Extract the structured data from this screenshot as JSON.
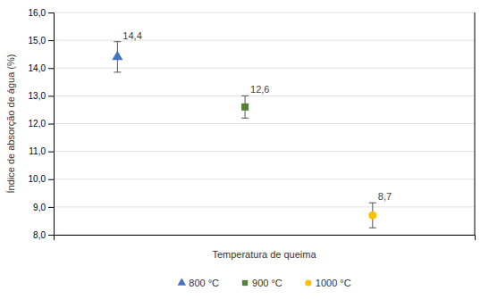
{
  "chart_data": {
    "type": "scatter",
    "xlabel": "Temperatura de queima",
    "ylabel": "Índice de absorção de água (%)",
    "xlim": [
      0.5,
      3.8
    ],
    "xticks": [],
    "ylim": [
      8.0,
      16.0
    ],
    "yticks": [
      {
        "value": 8.0,
        "label": "8,0"
      },
      {
        "value": 9.0,
        "label": "9,0"
      },
      {
        "value": 10.0,
        "label": "10,0"
      },
      {
        "value": 11.0,
        "label": "11,0"
      },
      {
        "value": 12.0,
        "label": "12,0"
      },
      {
        "value": 13.0,
        "label": "13,0"
      },
      {
        "value": 14.0,
        "label": "14,0"
      },
      {
        "value": 15.0,
        "label": "15,0"
      },
      {
        "value": 16.0,
        "label": "16,0"
      }
    ],
    "grid": true,
    "legend": "bottom",
    "tick_labels": "y",
    "data_labels": true,
    "series": [
      {
        "name": "800 °C",
        "color": "#4472C4",
        "marker": "triangle",
        "x": [
          1
        ],
        "values": [
          14.4
        ],
        "errors": [
          0.55
        ],
        "value_labels": [
          "14,4"
        ]
      },
      {
        "name": "900 °C",
        "color": "#538135",
        "marker": "square",
        "x": [
          2
        ],
        "values": [
          12.6
        ],
        "errors": [
          0.4
        ],
        "value_labels": [
          "12,6"
        ]
      },
      {
        "name": "1000 °C",
        "color": "#FFC000",
        "marker": "circle",
        "x": [
          3
        ],
        "values": [
          8.7
        ],
        "errors": [
          0.45
        ],
        "value_labels": [
          "8,7"
        ]
      }
    ]
  }
}
